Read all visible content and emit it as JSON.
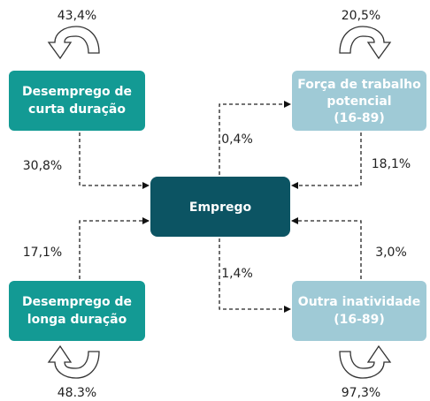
{
  "nodes": [
    {
      "lines": [
        "Desemprego de",
        "curta duração"
      ]
    },
    {
      "lines": [
        "Força de trabalho",
        "potencial",
        "(16-89)"
      ]
    },
    {
      "lines": [
        "Emprego"
      ]
    },
    {
      "lines": [
        "Desemprego de",
        "longa duração"
      ]
    },
    {
      "lines": [
        "Outra inatividade",
        "(16-89)"
      ]
    }
  ],
  "self_loops": [
    "43,4%",
    "20,5%",
    "48.3%",
    "97,3%"
  ],
  "edges": [
    "30,8%",
    "0,4%",
    "18,1%",
    "17,1%",
    "3,0%",
    "1,4%"
  ]
}
